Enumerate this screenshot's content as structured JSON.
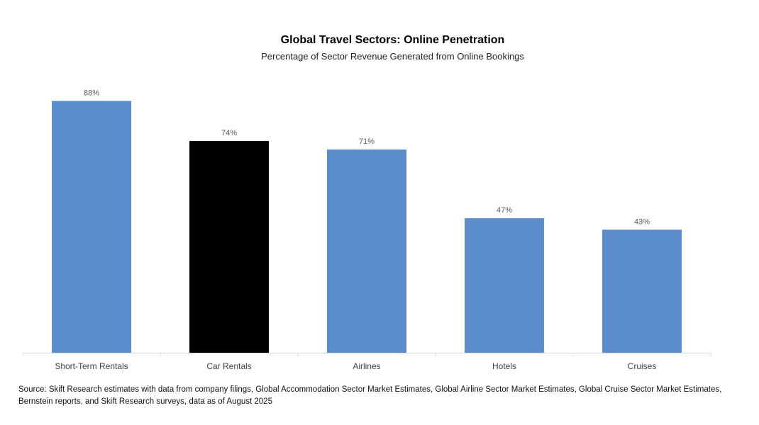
{
  "chart_data": {
    "type": "bar",
    "title": "Global Travel Sectors: Online Penetration",
    "subtitle": "Percentage of Sector Revenue Generated from Online Bookings",
    "categories": [
      "Short-Term Rentals",
      "Car Rentals",
      "Airlines",
      "Hotels",
      "Cruises"
    ],
    "values": [
      88,
      74,
      71,
      47,
      43
    ],
    "data_labels": [
      "88%",
      "74%",
      "71%",
      "47%",
      "43%"
    ],
    "unit": "%",
    "ylim": [
      0,
      100
    ],
    "grid": false,
    "legend": "none",
    "colors": {
      "default": "#5b8ccb",
      "highlight": "#000000",
      "highlight_category": "Car Rentals",
      "axis": "#d9d9d9",
      "label": "#595959"
    }
  },
  "source_note": "Source: Skift Research estimates with data from company filings, Global Accommodation Sector Market Estimates, Global Airline Sector Market Estimates, Global Cruise Sector Market Estimates, Bernstein reports, and Skift Research surveys, data as of August 2025"
}
